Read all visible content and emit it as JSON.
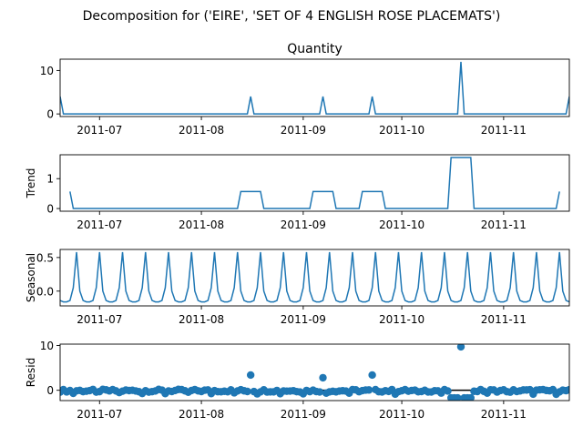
{
  "figure_title": "Decomposition for ('EIRE', 'SET OF 4 ENGLISH ROSE PLACEMATS')",
  "colors": {
    "series": "#1f77b4",
    "axis": "#000000",
    "background": "#ffffff"
  },
  "chart_data": [
    {
      "type": "line",
      "title": "Quantity",
      "ylabel": "",
      "x_range": [
        "2011-06-19",
        "2011-11-21"
      ],
      "ylim": [
        -0.6,
        12.6
      ],
      "y_ticks": [
        0,
        10
      ],
      "x_ticks": [
        "2011-07-01",
        "2011-08-01",
        "2011-09-01",
        "2011-10-01",
        "2011-11-01"
      ],
      "x_tick_labels": [
        "2011-07",
        "2011-08",
        "2011-09",
        "2011-10",
        "2011-11"
      ],
      "baseline": 0,
      "spikes": [
        {
          "x": "2011-06-19",
          "y": 4
        },
        {
          "x": "2011-08-16",
          "y": 4
        },
        {
          "x": "2011-09-07",
          "y": 4
        },
        {
          "x": "2011-09-22",
          "y": 4
        },
        {
          "x": "2011-10-19",
          "y": 12
        },
        {
          "x": "2011-11-21",
          "y": 4
        }
      ]
    },
    {
      "type": "line",
      "title": "",
      "ylabel": "Trend",
      "x_range": [
        "2011-06-19",
        "2011-11-21"
      ],
      "ylim": [
        -0.09,
        1.8
      ],
      "y_ticks": [
        0,
        1
      ],
      "x_ticks": [
        "2011-07-01",
        "2011-08-01",
        "2011-09-01",
        "2011-10-01",
        "2011-11-01"
      ],
      "x_tick_labels": [
        "2011-07",
        "2011-08",
        "2011-09",
        "2011-10",
        "2011-11"
      ],
      "points": [
        {
          "x": "2011-06-22",
          "y": 0.57
        },
        {
          "x": "2011-06-23",
          "y": 0
        },
        {
          "x": "2011-08-12",
          "y": 0
        },
        {
          "x": "2011-08-13",
          "y": 0.57
        },
        {
          "x": "2011-08-19",
          "y": 0.57
        },
        {
          "x": "2011-08-20",
          "y": 0
        },
        {
          "x": "2011-09-03",
          "y": 0
        },
        {
          "x": "2011-09-04",
          "y": 0.57
        },
        {
          "x": "2011-09-10",
          "y": 0.57
        },
        {
          "x": "2011-09-11",
          "y": 0
        },
        {
          "x": "2011-09-18",
          "y": 0
        },
        {
          "x": "2011-09-19",
          "y": 0.57
        },
        {
          "x": "2011-09-25",
          "y": 0.57
        },
        {
          "x": "2011-09-26",
          "y": 0
        },
        {
          "x": "2011-10-15",
          "y": 0
        },
        {
          "x": "2011-10-16",
          "y": 1.71
        },
        {
          "x": "2011-10-22",
          "y": 1.71
        },
        {
          "x": "2011-10-23",
          "y": 0
        },
        {
          "x": "2011-11-17",
          "y": 0
        },
        {
          "x": "2011-11-18",
          "y": 0.57
        }
      ]
    },
    {
      "type": "line",
      "title": "",
      "ylabel": "Seasonal",
      "x_range": [
        "2011-06-19",
        "2011-11-21"
      ],
      "ylim": [
        -0.22,
        0.62
      ],
      "y_ticks": [
        0.0,
        0.5
      ],
      "y_tick_labels": [
        "0.0",
        "0.5"
      ],
      "x_ticks": [
        "2011-07-01",
        "2011-08-01",
        "2011-09-01",
        "2011-10-01",
        "2011-11-01"
      ],
      "x_tick_labels": [
        "2011-07",
        "2011-08",
        "2011-09",
        "2011-10",
        "2011-11"
      ],
      "period_days": 7,
      "weekly_pattern": [
        -0.14,
        -0.16,
        -0.16,
        -0.14,
        0.05,
        0.58,
        0.0
      ],
      "pattern_start": "2011-06-19"
    },
    {
      "type": "scatter",
      "title": "",
      "ylabel": "Resid",
      "x_range": [
        "2011-06-19",
        "2011-11-21"
      ],
      "ylim": [
        -2.3,
        10.3
      ],
      "y_ticks": [
        0,
        10
      ],
      "x_ticks": [
        "2011-07-01",
        "2011-08-01",
        "2011-09-01",
        "2011-10-01",
        "2011-11-01"
      ],
      "x_tick_labels": [
        "2011-07",
        "2011-08",
        "2011-09",
        "2011-10",
        "2011-11"
      ],
      "zero_line": 0,
      "outliers": [
        {
          "x": "2011-08-16",
          "y": 3.4
        },
        {
          "x": "2011-09-07",
          "y": 2.8
        },
        {
          "x": "2011-09-22",
          "y": 3.4
        },
        {
          "x": "2011-10-19",
          "y": 9.7
        }
      ],
      "elevated_block": {
        "from": "2011-10-16",
        "to": "2011-10-22",
        "y": -1.7
      }
    }
  ]
}
